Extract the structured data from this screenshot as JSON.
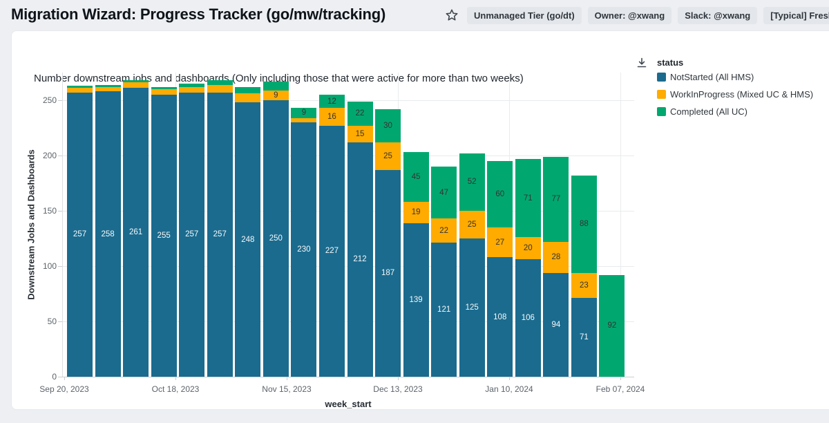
{
  "header": {
    "title": "Migration Wizard: Progress Tracker (go/mw/tracking)",
    "chips": [
      "Unmanaged Tier (go/dt)",
      "Owner: @xwang",
      "Slack: @xwang",
      "[Typical] Freshness: Up"
    ]
  },
  "card": {
    "chart_title": "Number downstream jobs and dashboards (Only including those that were active for more than two weeks)"
  },
  "legend": {
    "title": "status",
    "items": [
      {
        "label": "NotStarted (All HMS)",
        "color": "#1B6B8E"
      },
      {
        "label": "WorkInProgress (Mixed UC & HMS)",
        "color": "#FFAB00"
      },
      {
        "label": "Completed (All UC)",
        "color": "#00A870"
      }
    ]
  },
  "chart_data": {
    "type": "bar",
    "stacked": true,
    "title": "Number downstream jobs and dashboards (Only including those that were active for more than two weeks)",
    "xlabel": "week_start",
    "ylabel": "Downstream Jobs and Dashboards",
    "ylim": [
      0,
      270
    ],
    "yticks": [
      0,
      50,
      100,
      150,
      200,
      250
    ],
    "xticklabels": [
      "Sep 20, 2023",
      "Oct 18, 2023",
      "Nov 15, 2023",
      "Dec 13, 2023",
      "Jan 10, 2024",
      "Feb 07, 2024"
    ],
    "grid": true,
    "legend_position": "top-right",
    "segment_label_min_value": 9,
    "colors": {
      "NotStarted": "#1B6B8E",
      "WorkInProgress": "#FFAB00",
      "Completed": "#00A870"
    },
    "label_text_colors": {
      "on_blue": "#ffffff",
      "on_light": "#333333"
    },
    "series": [
      {
        "name": "NotStarted (All HMS)",
        "values": [
          257,
          258,
          261,
          255,
          257,
          257,
          248,
          250,
          230,
          227,
          212,
          187,
          139,
          121,
          125,
          108,
          106,
          94,
          71,
          0
        ]
      },
      {
        "name": "WorkInProgress (Mixed UC & HMS)",
        "values": [
          4,
          4,
          5,
          5,
          5,
          7,
          8,
          9,
          4,
          16,
          15,
          25,
          19,
          22,
          25,
          27,
          20,
          28,
          23,
          0
        ]
      },
      {
        "name": "Completed (All UC)",
        "values": [
          2,
          2,
          2,
          2,
          3,
          4,
          6,
          8,
          9,
          12,
          22,
          30,
          45,
          47,
          52,
          60,
          71,
          77,
          88,
          92
        ]
      }
    ]
  }
}
